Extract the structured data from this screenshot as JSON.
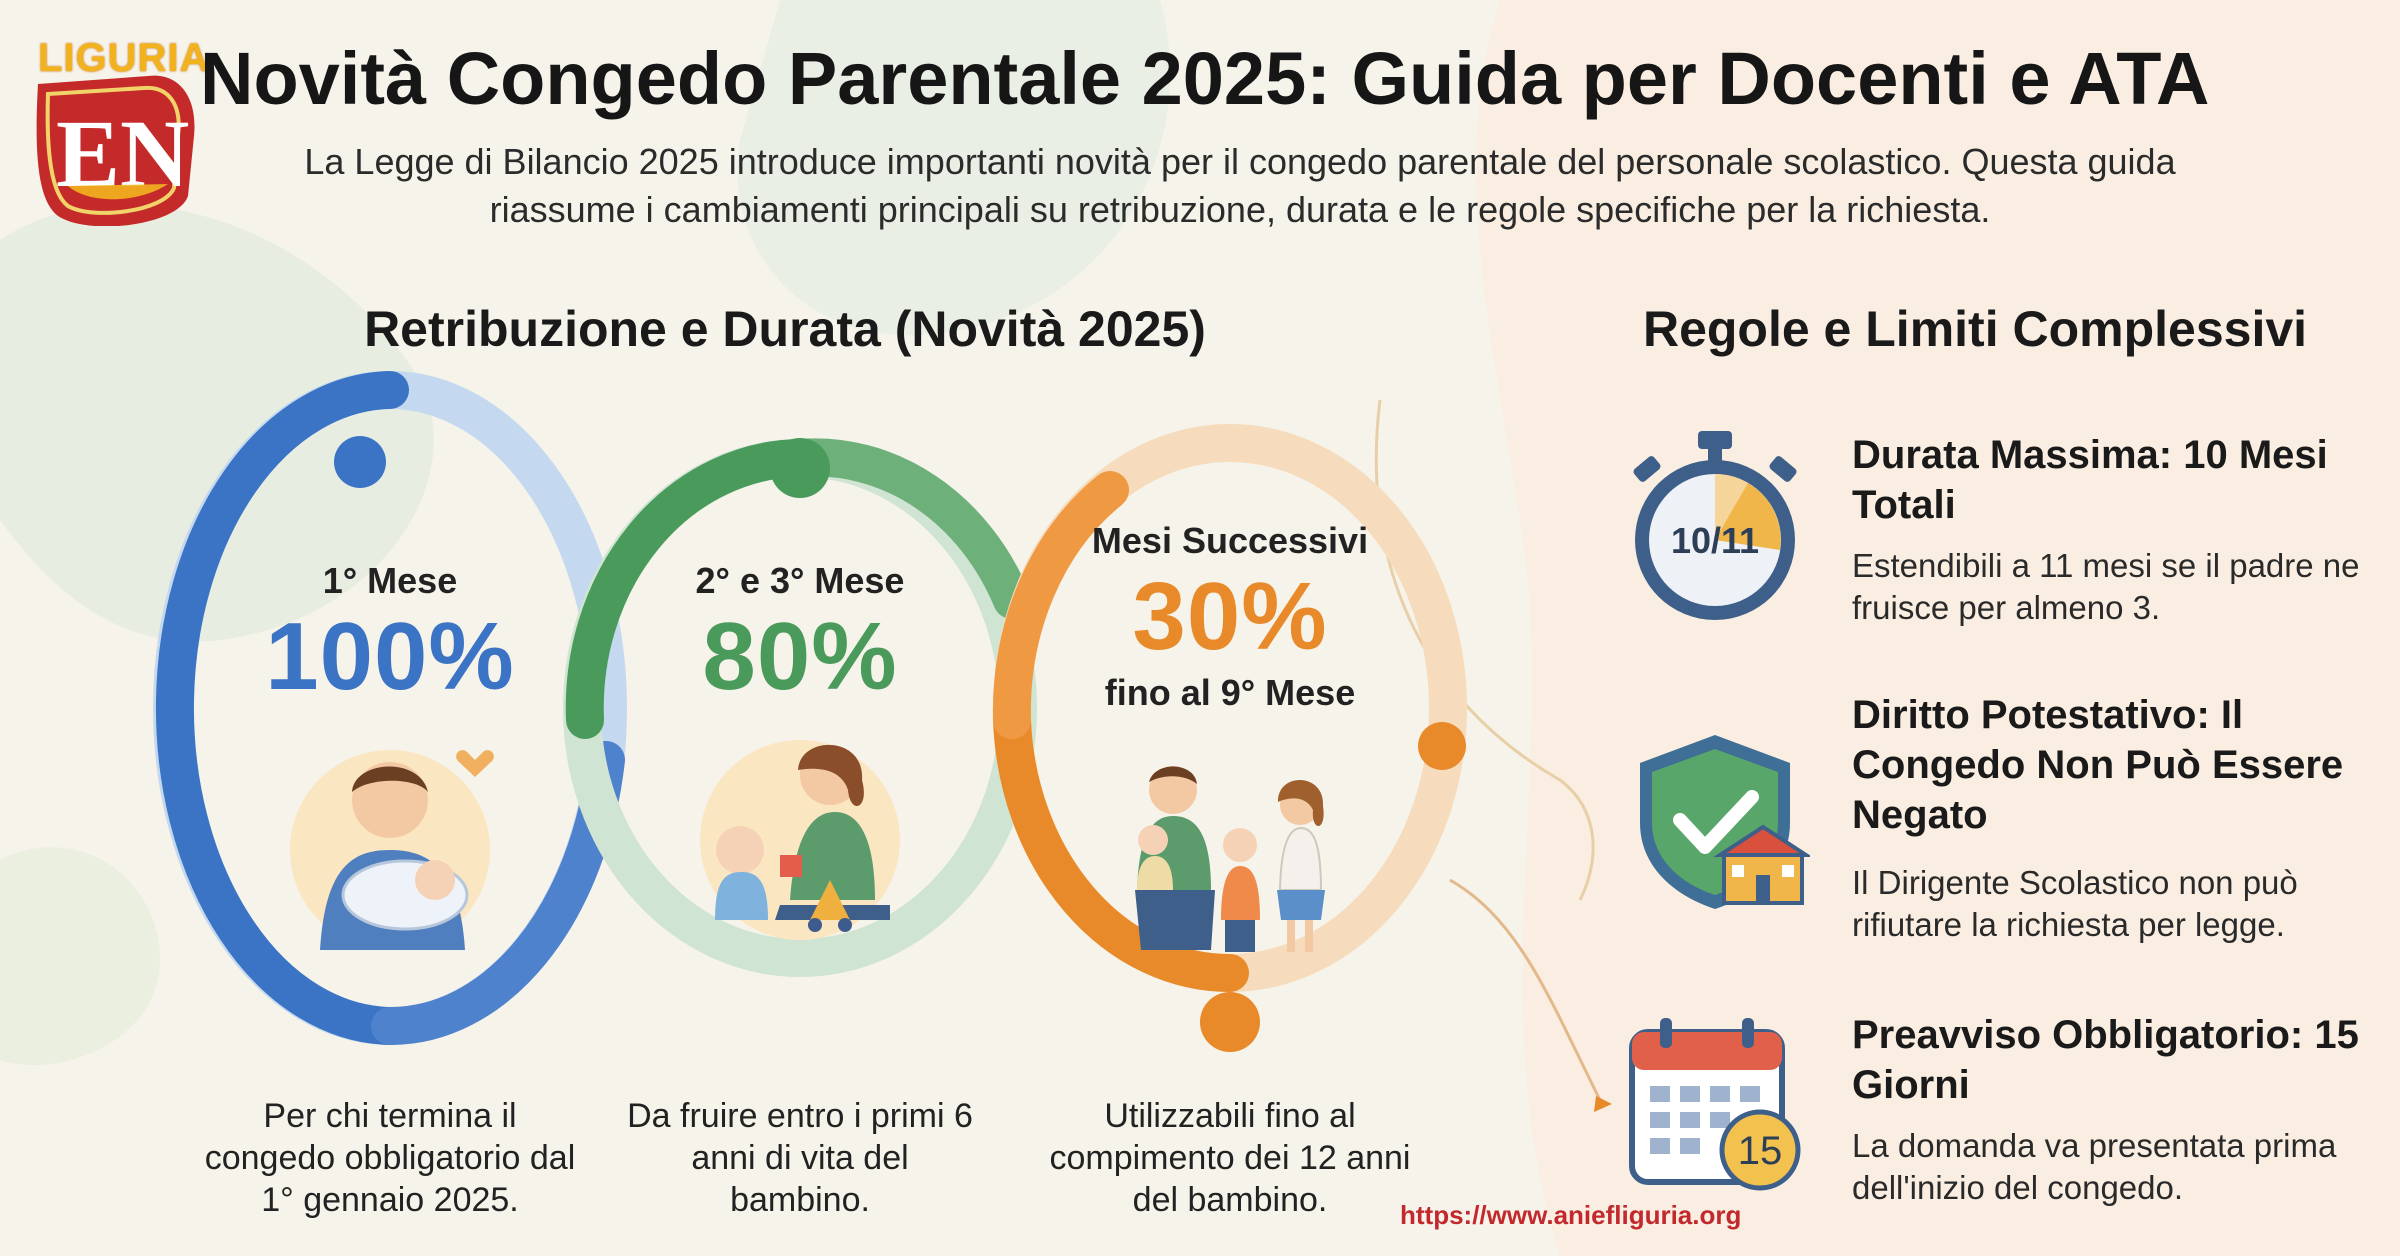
{
  "logo": {
    "text": "LIGURIA"
  },
  "header": {
    "title": "Novità Congedo Parentale 2025: Guida per Docenti e ATA",
    "intro": "La Legge di Bilancio 2025 introduce importanti novità per il congedo parentale del personale scolastico. Questa guida riassume i cambiamenti principali su retribuzione, durata e le regole specifiche per la richiesta."
  },
  "left_section": {
    "title": "Retribuzione e Durata (Novità 2025)",
    "cards": [
      {
        "label": "1° Mese",
        "percent": "100%",
        "note": "",
        "caption": "Per chi termina il congedo obbligatorio dal 1° gennaio 2025.",
        "color": "#3b74c4",
        "icon": "father-with-baby-illustration"
      },
      {
        "label": "2° e 3° Mese",
        "percent": "80%",
        "note": "",
        "caption": "Da fruire entro i primi 6 anni di vita del bambino.",
        "color": "#4a9a5c",
        "icon": "mother-with-child-illustration"
      },
      {
        "label": "Mesi Successivi",
        "percent": "30%",
        "note": "fino al 9° Mese",
        "caption": "Utilizzabili fino al compimento dei 12 anni del bambino.",
        "color": "#e88a2a",
        "icon": "family-illustration"
      }
    ]
  },
  "right_section": {
    "title": "Regole e Limiti Complessivi",
    "rules": [
      {
        "title": "Durata Massima: 10 Mesi Totali",
        "description": "Estendibili a 11 mesi se il padre ne fruisce per almeno 3.",
        "icon": "stopwatch-icon",
        "icon_text": "10/11"
      },
      {
        "title": "Diritto Potestativo: Il Congedo Non Può Essere Negato",
        "description": "Il Dirigente Scolastico non può rifiutare la richiesta per legge.",
        "icon": "shield-check-icon",
        "icon_text": ""
      },
      {
        "title": "Preavviso Obbligatorio: 15 Giorni",
        "description": "La domanda va presentata prima dell'inizio del congedo.",
        "icon": "calendar-icon",
        "icon_text": "15"
      }
    ]
  },
  "footer": {
    "url": "https://www.aniefliguria.org"
  },
  "colors": {
    "blue": "#3b74c4",
    "green": "#4a9a5c",
    "orange": "#e88a2a",
    "brand_red": "#c2282c",
    "logo_gold": "#f2b21e"
  }
}
